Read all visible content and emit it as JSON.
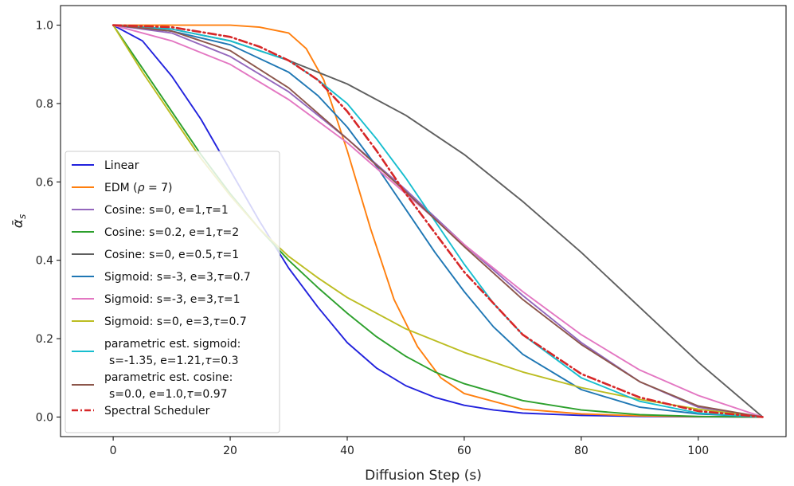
{
  "chart_data": {
    "type": "line",
    "xlabel": "Diffusion Step (s)",
    "ylabel": "ᾱ_s",
    "ylabel_base": "ᾱ",
    "ylabel_sub": "s",
    "xlim": [
      -9,
      115
    ],
    "ylim": [
      -0.05,
      1.05
    ],
    "xticks": [
      0,
      20,
      40,
      60,
      80,
      100
    ],
    "yticks": [
      0.0,
      0.2,
      0.4,
      0.6,
      0.8,
      1.0
    ],
    "xtick_labels": [
      "0",
      "20",
      "40",
      "60",
      "80",
      "100"
    ],
    "ytick_labels": [
      "0.0",
      "0.2",
      "0.4",
      "0.6",
      "0.8",
      "1.0"
    ],
    "grid": false,
    "legend_position": "lower-left",
    "series": [
      {
        "name": "Linear",
        "color": "#2222dd",
        "style": "solid",
        "x": [
          0,
          5,
          10,
          15,
          20,
          25,
          30,
          35,
          40,
          45,
          50,
          55,
          60,
          65,
          70,
          80,
          90,
          100,
          111
        ],
        "y": [
          1.0,
          0.96,
          0.87,
          0.76,
          0.63,
          0.5,
          0.38,
          0.28,
          0.19,
          0.125,
          0.08,
          0.05,
          0.03,
          0.018,
          0.01,
          0.004,
          0.0015,
          0.0004,
          0.0
        ]
      },
      {
        "name": "EDM (ρ = 7)",
        "name_parts": [
          "EDM (",
          "ρ",
          " = 7)"
        ],
        "color": "#ff7f0e",
        "style": "solid",
        "x": [
          0,
          10,
          20,
          25,
          30,
          33,
          36,
          40,
          44,
          48,
          52,
          56,
          60,
          70,
          80,
          90,
          100,
          111
        ],
        "y": [
          1.0,
          1.0,
          1.0,
          0.995,
          0.98,
          0.94,
          0.86,
          0.68,
          0.48,
          0.3,
          0.18,
          0.1,
          0.06,
          0.02,
          0.008,
          0.003,
          0.001,
          0.0
        ]
      },
      {
        "name": "Cosine: s=0, e=1,τ=1",
        "name_parts": [
          "Cosine: s=0, e=1,",
          "τ",
          "=1"
        ],
        "color": "#9467bd",
        "style": "solid",
        "x": [
          0,
          10,
          20,
          30,
          40,
          50,
          60,
          70,
          80,
          90,
          100,
          111
        ],
        "y": [
          1.0,
          0.98,
          0.92,
          0.83,
          0.71,
          0.58,
          0.44,
          0.31,
          0.19,
          0.09,
          0.025,
          0.0
        ]
      },
      {
        "name": "Cosine: s=0.2, e=1,τ=2",
        "name_parts": [
          "Cosine: s=0.2, e=1,",
          "τ",
          "=2"
        ],
        "color": "#2ca02c",
        "style": "solid",
        "x": [
          0,
          5,
          10,
          15,
          20,
          25,
          30,
          35,
          40,
          45,
          50,
          55,
          60,
          70,
          80,
          90,
          100,
          111
        ],
        "y": [
          1.0,
          0.89,
          0.78,
          0.67,
          0.57,
          0.48,
          0.4,
          0.33,
          0.265,
          0.205,
          0.155,
          0.115,
          0.085,
          0.042,
          0.018,
          0.006,
          0.0015,
          0.0
        ]
      },
      {
        "name": "Cosine: s=0, e=0.5,τ=1",
        "name_parts": [
          "Cosine: s=0, e=0.5,",
          "τ",
          "=1"
        ],
        "color": "#5f5f5f",
        "style": "solid",
        "x": [
          0,
          10,
          20,
          30,
          40,
          50,
          60,
          70,
          80,
          90,
          100,
          111
        ],
        "y": [
          1.0,
          0.99,
          0.96,
          0.91,
          0.85,
          0.77,
          0.67,
          0.55,
          0.42,
          0.28,
          0.14,
          0.0
        ]
      },
      {
        "name": "Sigmoid: s=-3, e=3,τ=0.7",
        "name_parts": [
          "Sigmoid: s=-3, e=3,",
          "τ",
          "=0.7"
        ],
        "color": "#1f77b4",
        "style": "solid",
        "x": [
          0,
          10,
          20,
          30,
          35,
          40,
          45,
          50,
          55,
          60,
          65,
          70,
          80,
          90,
          100,
          111
        ],
        "y": [
          1.0,
          0.985,
          0.95,
          0.88,
          0.82,
          0.74,
          0.64,
          0.53,
          0.42,
          0.32,
          0.23,
          0.16,
          0.07,
          0.025,
          0.008,
          0.0
        ]
      },
      {
        "name": "Sigmoid: s=-3, e=3,τ=1",
        "name_parts": [
          "Sigmoid: s=-3, e=3,",
          "τ",
          "=1"
        ],
        "color": "#e377c2",
        "style": "solid",
        "x": [
          0,
          10,
          20,
          30,
          40,
          50,
          60,
          70,
          80,
          90,
          100,
          111
        ],
        "y": [
          1.0,
          0.96,
          0.9,
          0.81,
          0.7,
          0.57,
          0.44,
          0.32,
          0.21,
          0.12,
          0.055,
          0.0
        ]
      },
      {
        "name": "Sigmoid: s=0, e=3,τ=0.7",
        "name_parts": [
          "Sigmoid: s=0, e=3,",
          "τ",
          "=0.7"
        ],
        "color": "#bcbd22",
        "style": "solid",
        "x": [
          0,
          5,
          10,
          15,
          20,
          25,
          30,
          35,
          40,
          50,
          60,
          70,
          80,
          90,
          100,
          111
        ],
        "y": [
          1.0,
          0.88,
          0.77,
          0.66,
          0.565,
          0.48,
          0.41,
          0.355,
          0.305,
          0.225,
          0.165,
          0.115,
          0.075,
          0.045,
          0.02,
          0.0
        ]
      },
      {
        "name": "parametric est. sigmoid:\ns=-1.35, e=1.21,τ=0.3",
        "name_lines": [
          "parametric est. sigmoid:",
          "s=-1.35, e=1.21,τ=0.3"
        ],
        "name_line2_parts": [
          "s=-1.35, e=1.21,",
          "τ",
          "=0.3"
        ],
        "color": "#17becf",
        "style": "solid",
        "x": [
          0,
          10,
          20,
          30,
          35,
          40,
          45,
          50,
          55,
          60,
          65,
          70,
          80,
          90,
          100,
          111
        ],
        "y": [
          1.0,
          0.99,
          0.96,
          0.91,
          0.86,
          0.8,
          0.71,
          0.61,
          0.5,
          0.39,
          0.29,
          0.21,
          0.1,
          0.04,
          0.01,
          0.0
        ]
      },
      {
        "name": "parametric est. cosine:\ns=0.0, e=1.0,τ=0.97",
        "name_lines": [
          "parametric est. cosine:",
          "s=0.0, e=1.0,τ=0.97"
        ],
        "name_line2_parts": [
          "s=0.0, e=1.0,",
          "τ",
          "=0.97"
        ],
        "color": "#8c564b",
        "style": "solid",
        "x": [
          0,
          10,
          20,
          30,
          40,
          50,
          60,
          70,
          80,
          90,
          100,
          111
        ],
        "y": [
          1.0,
          0.985,
          0.935,
          0.84,
          0.71,
          0.575,
          0.435,
          0.3,
          0.185,
          0.09,
          0.028,
          0.0
        ]
      },
      {
        "name": "Spectral Scheduler",
        "color": "#d62728",
        "style": "dashdot",
        "x": [
          0,
          10,
          20,
          25,
          30,
          35,
          40,
          45,
          50,
          55,
          60,
          65,
          70,
          80,
          90,
          100,
          111
        ],
        "y": [
          1.0,
          0.995,
          0.97,
          0.945,
          0.91,
          0.86,
          0.78,
          0.68,
          0.57,
          0.47,
          0.37,
          0.29,
          0.21,
          0.11,
          0.05,
          0.015,
          0.0
        ]
      }
    ]
  }
}
